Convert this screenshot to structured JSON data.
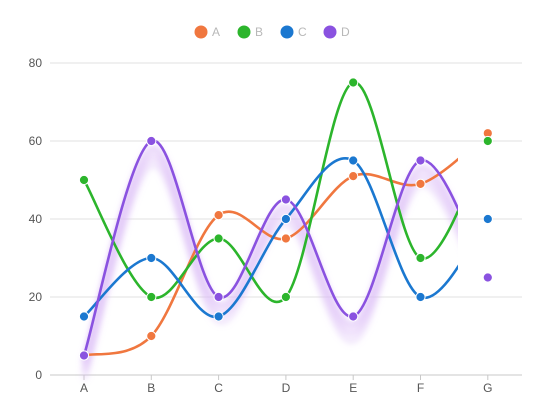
{
  "chart_data": {
    "type": "line",
    "smooth": true,
    "categories": [
      "A",
      "B",
      "C",
      "D",
      "E",
      "F",
      "G"
    ],
    "ylim": [
      0,
      80
    ],
    "yticks": [
      0,
      20,
      40,
      60,
      80
    ],
    "grid": true,
    "legend_position": "top-center",
    "clip_lines_before_last_category": true,
    "series": [
      {
        "name": "A",
        "color": "#f0773f",
        "values": [
          5,
          10,
          41,
          35,
          51,
          49,
          62
        ]
      },
      {
        "name": "B",
        "color": "#2cb52c",
        "values": [
          50,
          20,
          35,
          20,
          75,
          30,
          60
        ]
      },
      {
        "name": "C",
        "color": "#1b78d0",
        "values": [
          15,
          30,
          15,
          40,
          55,
          20,
          40
        ]
      },
      {
        "name": "D",
        "color": "#8a52e0",
        "glow": true,
        "values": [
          5,
          60,
          20,
          45,
          15,
          55,
          25
        ]
      }
    ]
  }
}
